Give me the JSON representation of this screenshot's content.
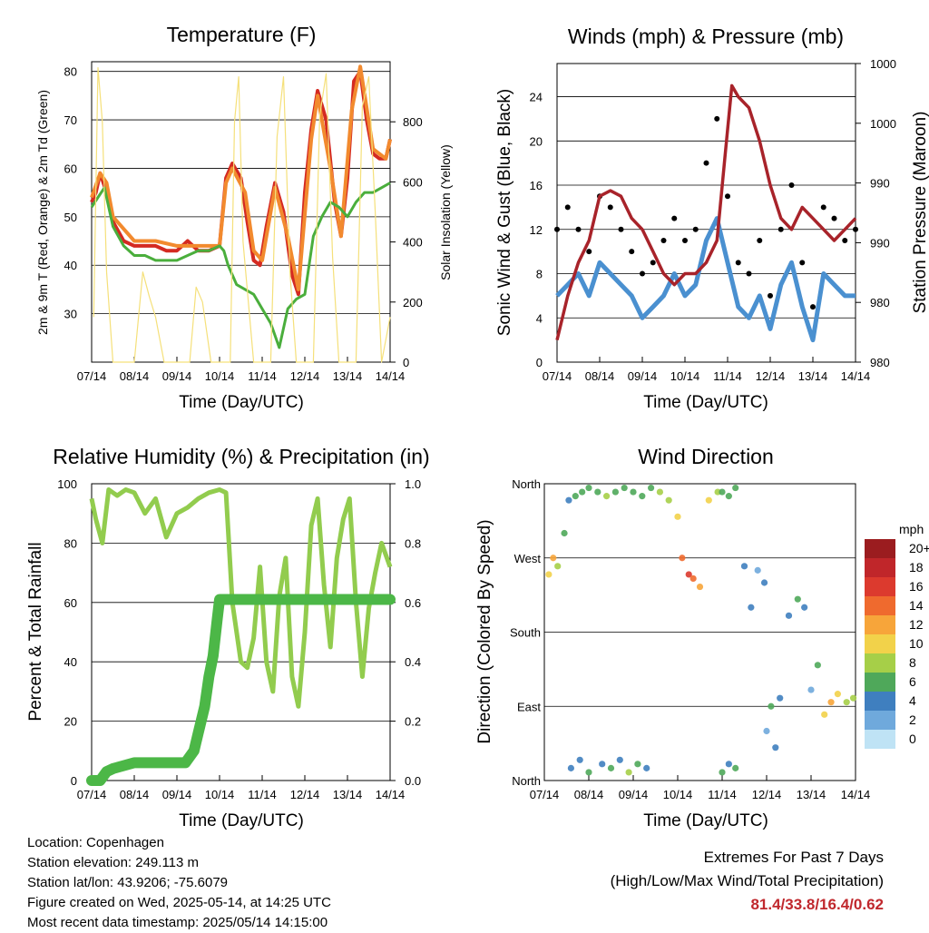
{
  "panels": {
    "temperature": {
      "title": "Temperature (F)",
      "ylabel_left": "2m & 9m T (Red, Orange) & 2m Td (Green)",
      "ylabel_right": "Solar Insolation (Yellow)",
      "xlabel": "Time (Day/UTC)"
    },
    "winds": {
      "title": "Winds (mph) & Pressure (mb)",
      "ylabel_left": "Sonic Wind & Gust (Blue, Black)",
      "ylabel_right": "Station Pressure (Maroon)",
      "xlabel": "Time (Day/UTC)"
    },
    "humidity": {
      "title": "Relative Humidity (%) & Precipitation (in)",
      "ylabel_left": "Percent & Total Rainfall",
      "xlabel": "Time (Day/UTC)"
    },
    "direction": {
      "title": "Wind Direction",
      "ylabel_left": "Direction (Colored By Speed)",
      "xlabel": "Time (Day/UTC)",
      "colorbar_title": "mph",
      "colorbar_labels": [
        "20+",
        "18",
        "16",
        "14",
        "12",
        "10",
        "8",
        "6",
        "4",
        "2",
        "0"
      ],
      "colorbar_colors": [
        "#9b1c1f",
        "#c0262a",
        "#dc3a2e",
        "#ef6a2e",
        "#f7a53a",
        "#f2d24a",
        "#a6cf48",
        "#4fa85a",
        "#3f7fbf",
        "#6fa9dc",
        "#bfe3f5"
      ]
    }
  },
  "footer": {
    "location": "Location: Copenhagen",
    "elevation": "Station elevation: 249.113 m",
    "latlon": "Station lat/lon: 43.9206; -75.6079",
    "created": "Figure created on Wed, 2025-05-14, at 14:25 UTC",
    "recent": "Most recent data timestamp: 2025/05/14 14:15:00"
  },
  "extremes": {
    "heading": "Extremes For Past 7 Days",
    "subheading": "(High/Low/Max Wind/Total Precipitation)",
    "values": "81.4/33.8/16.4/0.62"
  },
  "chart_data": [
    {
      "type": "line",
      "title": "Temperature (F)",
      "xlabel": "Time (Day/UTC)",
      "ylabel": "2m & 9m T (Red, Orange) & 2m Td (Green)",
      "y2label": "Solar Insolation (Yellow)",
      "x_ticks": [
        "07/14",
        "08/14",
        "09/14",
        "10/14",
        "11/14",
        "12/14",
        "13/14",
        "14/14"
      ],
      "xlim": [
        0,
        7
      ],
      "ylim": [
        20,
        82
      ],
      "y_ticks": [
        30,
        40,
        50,
        60,
        70,
        80
      ],
      "y2lim": [
        0,
        1000
      ],
      "y2_ticks": [
        0,
        200,
        400,
        600,
        800
      ],
      "grid": true,
      "series": [
        {
          "name": "2m T",
          "color": "#d42a22",
          "x": [
            0,
            0.1,
            0.2,
            0.35,
            0.5,
            0.75,
            1,
            1.25,
            1.5,
            1.75,
            2,
            2.25,
            2.5,
            2.75,
            3,
            3.15,
            3.3,
            3.5,
            3.65,
            3.8,
            3.95,
            4.1,
            4.3,
            4.5,
            4.7,
            4.85,
            5,
            5.15,
            5.3,
            5.5,
            5.7,
            5.85,
            6,
            6.15,
            6.3,
            6.45,
            6.6,
            6.75,
            6.9,
            7
          ],
          "y": [
            53,
            55,
            59,
            55,
            49,
            45,
            44,
            44,
            44,
            43,
            43,
            45,
            43,
            43,
            44,
            58,
            61,
            58,
            49,
            41,
            40,
            48,
            57,
            51,
            38,
            34,
            55,
            68,
            76,
            70,
            53,
            46,
            58,
            78,
            80,
            70,
            63,
            62,
            62,
            66
          ]
        },
        {
          "name": "9m T",
          "color": "#f28a2e",
          "x": [
            0,
            0.2,
            0.35,
            0.5,
            1,
            1.5,
            2,
            2.5,
            3,
            3.15,
            3.3,
            3.6,
            3.8,
            4,
            4.3,
            4.6,
            4.85,
            5.15,
            5.3,
            5.6,
            5.85,
            6.1,
            6.3,
            6.6,
            6.9,
            7
          ],
          "y": [
            54,
            59,
            57,
            50,
            45,
            45,
            44,
            44,
            44,
            57,
            60,
            55,
            43,
            41,
            56,
            46,
            35,
            66,
            75,
            60,
            46,
            72,
            81,
            64,
            62,
            66
          ]
        },
        {
          "name": "2m Td",
          "color": "#4aae3c",
          "x": [
            0,
            0.15,
            0.3,
            0.5,
            0.75,
            1,
            1.25,
            1.5,
            1.75,
            2,
            2.25,
            2.5,
            2.75,
            3,
            3.1,
            3.2,
            3.4,
            3.6,
            3.8,
            4,
            4.2,
            4.4,
            4.6,
            4.8,
            5,
            5.2,
            5.4,
            5.6,
            5.8,
            6,
            6.2,
            6.4,
            6.6,
            6.8,
            7
          ],
          "y": [
            52,
            54,
            56,
            48,
            44,
            42,
            42,
            41,
            41,
            41,
            42,
            43,
            43,
            44,
            43,
            40,
            36,
            35,
            34,
            31,
            28,
            23,
            31,
            33,
            34,
            46,
            50,
            53,
            52,
            50,
            53,
            55,
            55,
            56,
            57
          ]
        },
        {
          "name": "Solar Insolation",
          "color": "#f5e07a",
          "axis": "y2",
          "x": [
            0.05,
            0.15,
            0.25,
            0.35,
            0.5,
            0.7,
            1.0,
            1.2,
            1.35,
            1.5,
            1.7,
            2,
            2.3,
            2.45,
            2.6,
            2.8,
            3.0,
            3.25,
            3.35,
            3.45,
            3.55,
            3.8,
            4.2,
            4.35,
            4.5,
            4.65,
            4.8,
            5.2,
            5.35,
            5.5,
            5.65,
            5.8,
            6.2,
            6.35,
            6.5,
            6.65,
            6.8,
            7
          ],
          "y": [
            150,
            980,
            800,
            300,
            0,
            0,
            0,
            300,
            220,
            150,
            0,
            0,
            0,
            250,
            200,
            0,
            0,
            0,
            800,
            950,
            400,
            0,
            0,
            750,
            950,
            300,
            0,
            0,
            820,
            960,
            350,
            0,
            0,
            850,
            950,
            500,
            0,
            150
          ]
        }
      ]
    },
    {
      "type": "line",
      "title": "Winds (mph) & Pressure (mb)",
      "xlabel": "Time (Day/UTC)",
      "ylabel": "Sonic Wind & Gust (Blue, Black)",
      "y2label": "Station Pressure (Maroon)",
      "x_ticks": [
        "07/14",
        "08/14",
        "09/14",
        "10/14",
        "11/14",
        "12/14",
        "13/14",
        "14/14"
      ],
      "xlim": [
        0,
        7
      ],
      "ylim": [
        0,
        27
      ],
      "y_ticks": [
        0,
        4,
        8,
        12,
        16,
        20,
        24
      ],
      "y2_tick_labels": [
        "980",
        "980",
        "990",
        "990",
        "1000",
        "1000"
      ],
      "grid": true,
      "series": [
        {
          "name": "Sonic Wind",
          "color": "#4a90d0",
          "x": [
            0,
            0.25,
            0.5,
            0.75,
            1,
            1.25,
            1.5,
            1.75,
            2,
            2.25,
            2.5,
            2.75,
            3,
            3.25,
            3.5,
            3.75,
            4,
            4.25,
            4.5,
            4.75,
            5,
            5.25,
            5.5,
            5.75,
            6,
            6.25,
            6.5,
            6.75,
            7
          ],
          "y": [
            6,
            7,
            8,
            6,
            9,
            8,
            7,
            6,
            4,
            5,
            6,
            8,
            6,
            7,
            11,
            13,
            9,
            5,
            4,
            6,
            3,
            7,
            9,
            5,
            2,
            8,
            7,
            6,
            6
          ]
        },
        {
          "name": "Gust",
          "color": "#000000",
          "x": [
            0,
            0.25,
            0.5,
            0.75,
            1,
            1.25,
            1.5,
            1.75,
            2,
            2.25,
            2.5,
            2.75,
            3,
            3.25,
            3.5,
            3.75,
            4,
            4.25,
            4.5,
            4.75,
            5,
            5.25,
            5.5,
            5.75,
            6,
            6.25,
            6.5,
            6.75,
            7
          ],
          "y": [
            12,
            14,
            12,
            10,
            15,
            14,
            12,
            10,
            8,
            9,
            11,
            13,
            11,
            12,
            18,
            22,
            15,
            9,
            8,
            11,
            6,
            12,
            16,
            9,
            5,
            14,
            13,
            11,
            12
          ]
        },
        {
          "name": "Station Pressure",
          "color": "#a8232a",
          "x": [
            0,
            0.25,
            0.5,
            0.75,
            1,
            1.25,
            1.5,
            1.75,
            2,
            2.25,
            2.5,
            2.75,
            3,
            3.25,
            3.5,
            3.75,
            3.95,
            4.1,
            4.25,
            4.5,
            4.75,
            5,
            5.25,
            5.5,
            5.75,
            6,
            6.25,
            6.5,
            6.75,
            7
          ],
          "y": [
            2,
            6,
            9,
            11,
            15,
            15.5,
            15,
            13,
            12,
            10,
            8,
            7,
            8,
            8,
            9,
            11,
            19,
            25,
            24,
            23,
            20,
            16,
            13,
            12,
            14,
            13,
            12,
            11,
            12,
            13
          ]
        }
      ]
    },
    {
      "type": "line",
      "title": "Relative Humidity (%) & Precipitation (in)",
      "xlabel": "Time (Day/UTC)",
      "ylabel": "Percent & Total Rainfall",
      "x_ticks": [
        "07/14",
        "08/14",
        "09/14",
        "10/14",
        "11/14",
        "12/14",
        "13/14",
        "14/14"
      ],
      "xlim": [
        0,
        7
      ],
      "ylim": [
        0,
        100
      ],
      "y_ticks": [
        0,
        20,
        40,
        60,
        80,
        100
      ],
      "y2lim": [
        0,
        1.0
      ],
      "y2_ticks": [
        "0.0",
        "0.2",
        "0.4",
        "0.6",
        "0.8",
        "1.0"
      ],
      "grid": true,
      "series": [
        {
          "name": "Relative Humidity",
          "color": "#92cc4e",
          "x": [
            0,
            0.1,
            0.25,
            0.4,
            0.6,
            0.8,
            1,
            1.25,
            1.5,
            1.75,
            2,
            2.25,
            2.5,
            2.75,
            3,
            3.15,
            3.3,
            3.5,
            3.65,
            3.8,
            3.95,
            4.1,
            4.25,
            4.4,
            4.55,
            4.7,
            4.85,
            5,
            5.15,
            5.3,
            5.45,
            5.6,
            5.75,
            5.9,
            6.05,
            6.2,
            6.35,
            6.5,
            6.65,
            6.8,
            7
          ],
          "y": [
            95,
            88,
            80,
            98,
            96,
            98,
            97,
            90,
            95,
            82,
            90,
            92,
            95,
            97,
            98,
            97,
            60,
            40,
            38,
            48,
            72,
            40,
            30,
            62,
            75,
            35,
            25,
            50,
            86,
            95,
            66,
            45,
            75,
            88,
            95,
            60,
            35,
            58,
            70,
            80,
            72
          ]
        },
        {
          "name": "Total Precipitation",
          "color": "#4cb747",
          "axis": "y2",
          "x": [
            0,
            0.2,
            0.35,
            0.5,
            1,
            1.5,
            2,
            2.2,
            2.4,
            2.5,
            2.65,
            2.75,
            2.85,
            2.95,
            3.0,
            3.5,
            4,
            4.5,
            5,
            5.5,
            6,
            6.5,
            7
          ],
          "y": [
            0,
            0,
            0.03,
            0.04,
            0.06,
            0.06,
            0.06,
            0.06,
            0.1,
            0.16,
            0.25,
            0.35,
            0.42,
            0.55,
            0.61,
            0.61,
            0.61,
            0.61,
            0.61,
            0.61,
            0.61,
            0.61,
            0.61
          ]
        }
      ]
    },
    {
      "type": "scatter",
      "title": "Wind Direction",
      "xlabel": "Time (Day/UTC)",
      "ylabel": "Direction (Colored By Speed)",
      "x_ticks": [
        "07/14",
        "08/14",
        "09/14",
        "10/14",
        "11/14",
        "12/14",
        "13/14",
        "14/14"
      ],
      "xlim": [
        0,
        7
      ],
      "y_tick_labels": [
        "North",
        "East",
        "South",
        "West",
        "North"
      ],
      "ylim": [
        0,
        360
      ],
      "grid": true,
      "points": {
        "x": [
          0.1,
          0.2,
          0.3,
          0.45,
          0.55,
          0.7,
          0.85,
          1.0,
          1.2,
          1.4,
          1.6,
          1.8,
          2.0,
          2.2,
          2.4,
          2.6,
          2.8,
          3.0,
          3.1,
          3.25,
          3.35,
          3.5,
          3.7,
          3.9,
          4.0,
          4.15,
          4.3,
          4.5,
          4.65,
          4.8,
          4.95,
          5.1,
          5.3,
          5.5,
          5.7,
          5.85,
          6.0,
          6.15,
          6.3,
          6.45,
          6.6,
          6.8,
          6.95,
          0.6,
          0.8,
          1.0,
          1.3,
          1.5,
          1.7,
          1.9,
          2.1,
          2.3,
          4.0,
          4.15,
          4.3,
          5.0,
          5.2
        ],
        "y": [
          250,
          270,
          260,
          300,
          340,
          345,
          350,
          355,
          350,
          345,
          350,
          355,
          350,
          345,
          355,
          350,
          340,
          320,
          270,
          250,
          245,
          235,
          340,
          350,
          350,
          345,
          355,
          260,
          210,
          255,
          240,
          90,
          100,
          200,
          220,
          210,
          110,
          140,
          80,
          95,
          105,
          95,
          100,
          15,
          25,
          10,
          20,
          15,
          25,
          10,
          20,
          15,
          10,
          20,
          15,
          60,
          40
        ],
        "speed": [
          10,
          12,
          8,
          6,
          4,
          6,
          6,
          5,
          6,
          7,
          6,
          5,
          6,
          5,
          6,
          7,
          8,
          10,
          13,
          15,
          14,
          11,
          9,
          7,
          6,
          5,
          5,
          4,
          3,
          2,
          4,
          6,
          4,
          3,
          5,
          3,
          2,
          6,
          9,
          11,
          10,
          8,
          8,
          4,
          3,
          5,
          4,
          6,
          3,
          7,
          5,
          4,
          5,
          3,
          6,
          2,
          4
        ]
      }
    }
  ]
}
